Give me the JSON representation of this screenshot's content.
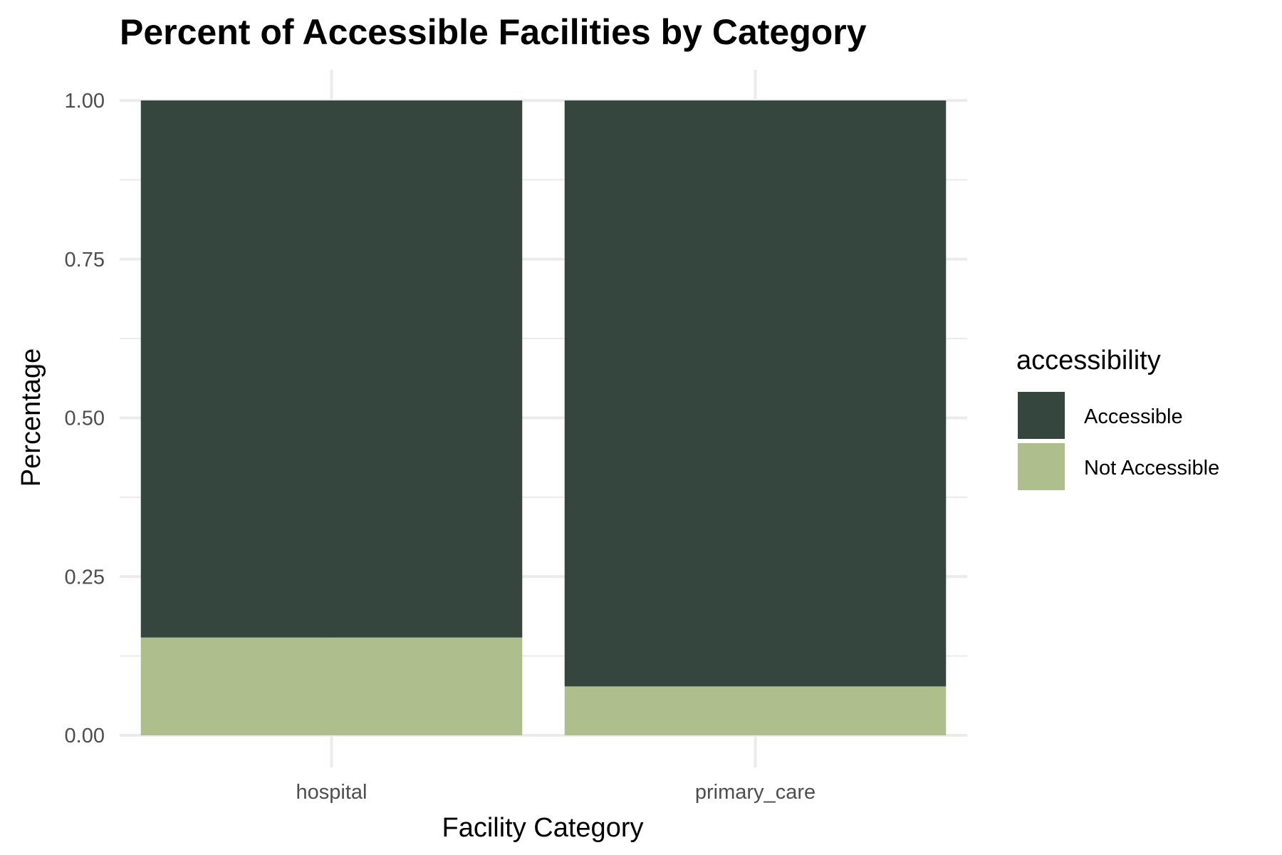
{
  "chart_data": {
    "type": "bar",
    "stacked": true,
    "title": "Percent of Accessible Facilities by Category",
    "xlabel": "Facility Category",
    "ylabel": "Percentage",
    "categories": [
      "hospital",
      "primary_care"
    ],
    "ylim": [
      0,
      1
    ],
    "yticks": [
      "0.00",
      "0.25",
      "0.50",
      "0.75",
      "1.00"
    ],
    "ytick_values": [
      0,
      0.25,
      0.5,
      0.75,
      1.0
    ],
    "grid": true,
    "legend": {
      "title": "accessibility",
      "position": "right"
    },
    "series": [
      {
        "name": "Not Accessible",
        "values": [
          0.154,
          0.077
        ],
        "color": "#aebf8d"
      },
      {
        "name": "Accessible",
        "values": [
          0.846,
          0.923
        ],
        "color": "#34463e"
      }
    ]
  }
}
